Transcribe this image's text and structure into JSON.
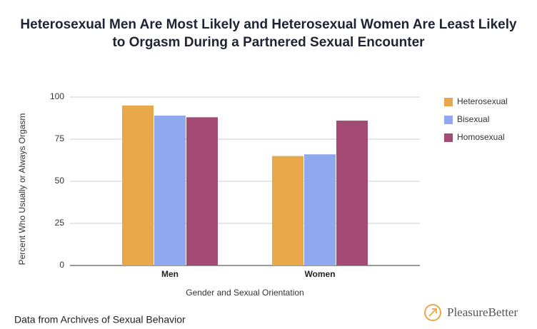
{
  "chart_data": {
    "type": "bar",
    "title": [
      "Heterosexual Men Are Most Likely and Heterosexual Women Are Least Likely",
      "to Orgasm During a Partnered Sexual Encounter"
    ],
    "x_label": "Gender and Sexual Orientation",
    "y_label": "Percent Who Usually or Always Orgasm",
    "categories": [
      "Men",
      "Women"
    ],
    "series": [
      {
        "name": "Heterosexual",
        "color": "#e8a84a",
        "values": [
          95,
          65
        ]
      },
      {
        "name": "Bisexual",
        "color": "#8fa8f0",
        "values": [
          89,
          66
        ]
      },
      {
        "name": "Homosexual",
        "color": "#a34a75",
        "values": [
          88,
          86
        ]
      }
    ],
    "ylim": [
      0,
      100
    ],
    "yticks": [
      0,
      25,
      50,
      75,
      100
    ],
    "grid": true,
    "legend": "right",
    "source": "Data from Archives of Sexual Behavior",
    "brand": "PleasureBetter"
  }
}
